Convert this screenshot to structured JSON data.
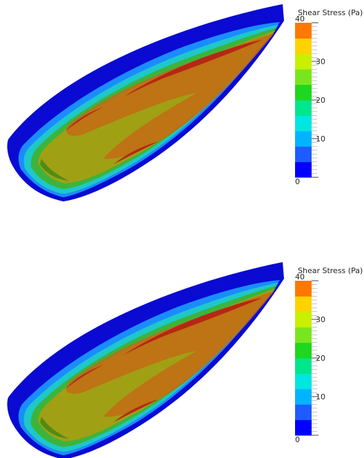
{
  "panels": [
    {
      "colorbar": {
        "title": "Shear Stress (Pa)",
        "range": [
          0,
          40
        ],
        "ticks": [
          0,
          10,
          20,
          30,
          40
        ],
        "colors": [
          "#0000ff",
          "#1e5cff",
          "#00b4ff",
          "#00e6e0",
          "#00e68c",
          "#1ed71e",
          "#78e61e",
          "#c8f000",
          "#ffd200",
          "#ff7800",
          "#ff0000"
        ]
      }
    },
    {
      "colorbar": {
        "title": "Shear Stress (Pa)",
        "range": [
          0,
          40
        ],
        "ticks": [
          0,
          10,
          20,
          30,
          40
        ],
        "colors": [
          "#0000ff",
          "#1e5cff",
          "#00b4ff",
          "#00e6e0",
          "#00e68c",
          "#1ed71e",
          "#78e61e",
          "#c8f000",
          "#ffd200",
          "#ff7800",
          "#ff0000"
        ]
      }
    }
  ]
}
